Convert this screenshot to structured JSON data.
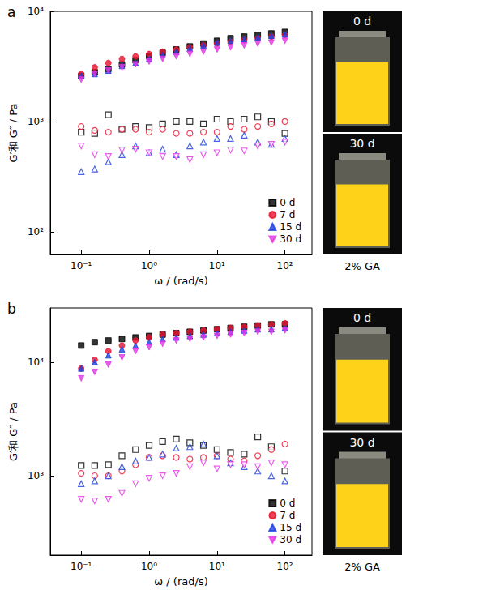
{
  "chart_data": [
    {
      "type": "scatter",
      "title": "a",
      "xlabel": "ω / (rad/s)",
      "ylabel": "G′和 G″ / Pa",
      "log": true,
      "grid": false,
      "legend": "lower right",
      "xlim": [
        0.035,
        250
      ],
      "xticks": [
        {
          "value": 0.1,
          "label": "10⁻¹"
        },
        {
          "value": 1,
          "label": "10⁰"
        },
        {
          "value": 10,
          "label": "10¹"
        },
        {
          "value": 100,
          "label": "10²"
        }
      ],
      "ylim": [
        62,
        10000
      ],
      "yticks": [
        {
          "value": 100,
          "label": "10²"
        },
        {
          "value": 1000,
          "label": "10³"
        },
        {
          "value": 10000,
          "label": "10⁴"
        }
      ],
      "annotations": [
        "0 d",
        "30 d",
        "2% GA"
      ],
      "x": [
        0.1,
        0.158,
        0.251,
        0.398,
        0.631,
        1,
        1.58,
        2.51,
        3.98,
        6.31,
        10,
        15.8,
        25.1,
        39.8,
        63.1,
        100
      ],
      "series": [
        {
          "name": "0 d",
          "color": "#000000",
          "marker": "square",
          "values": [
            2600,
            2800,
            3000,
            3300,
            3600,
            3900,
            4200,
            4500,
            4800,
            5100,
            5400,
            5700,
            5900,
            6100,
            6300,
            6500
          ]
        },
        {
          "name": "7 d",
          "color": "#e8112d",
          "marker": "circle",
          "values": [
            2700,
            3100,
            3400,
            3700,
            3900,
            4100,
            4300,
            4500,
            4700,
            4900,
            5100,
            5300,
            5500,
            5700,
            5900,
            6100
          ]
        },
        {
          "name": "15 d",
          "color": "#1c3fe0",
          "marker": "triangle",
          "values": [
            2600,
            2700,
            2900,
            3200,
            3400,
            3700,
            4000,
            4300,
            4600,
            4900,
            5200,
            5400,
            5600,
            5800,
            6000,
            6200
          ]
        },
        {
          "name": "30 d",
          "color": "#e535e5",
          "marker": "triangle-down",
          "values": [
            2400,
            2700,
            2900,
            3100,
            3300,
            3500,
            3700,
            3900,
            4100,
            4300,
            4500,
            4700,
            4900,
            5100,
            5200,
            5400
          ]
        },
        {
          "name": "0 d",
          "color": "#000000",
          "marker": "square-open",
          "values": [
            800,
            780,
            1150,
            850,
            900,
            880,
            950,
            1000,
            1000,
            950,
            1050,
            1000,
            1050,
            1100,
            1000,
            780
          ]
        },
        {
          "name": "7 d",
          "color": "#e8112d",
          "marker": "circle-open",
          "values": [
            900,
            830,
            800,
            850,
            850,
            800,
            850,
            780,
            780,
            800,
            800,
            900,
            850,
            900,
            950,
            1000
          ]
        },
        {
          "name": "15 d",
          "color": "#1c3fe0",
          "marker": "triangle-open",
          "values": [
            350,
            370,
            430,
            500,
            600,
            520,
            560,
            500,
            600,
            650,
            700,
            700,
            750,
            650,
            620,
            700
          ]
        },
        {
          "name": "30 d",
          "color": "#e535e5",
          "marker": "triangle-down-open",
          "values": [
            600,
            500,
            480,
            550,
            560,
            520,
            480,
            480,
            450,
            500,
            520,
            550,
            540,
            600,
            620,
            650
          ]
        }
      ]
    },
    {
      "type": "scatter",
      "title": "b",
      "xlabel": "ω / (rad/s)",
      "ylabel": "G′和 G″ / Pa",
      "log": true,
      "grid": false,
      "legend": "lower right",
      "xlim": [
        0.035,
        250
      ],
      "xticks": [
        {
          "value": 0.1,
          "label": "10⁻¹"
        },
        {
          "value": 1,
          "label": "10⁰"
        },
        {
          "value": 10,
          "label": "10¹"
        },
        {
          "value": 100,
          "label": "10²"
        }
      ],
      "ylim": [
        200,
        30000
      ],
      "yticks": [
        {
          "value": 1000,
          "label": "10³"
        },
        {
          "value": 10000,
          "label": "10⁴"
        }
      ],
      "annotations": [
        "0 d",
        "30 d",
        "2% GA"
      ],
      "x": [
        0.1,
        0.158,
        0.251,
        0.398,
        0.631,
        1,
        1.58,
        2.51,
        3.98,
        6.31,
        10,
        15.8,
        25.1,
        39.8,
        63.1,
        100
      ],
      "series": [
        {
          "name": "0 d",
          "color": "#000000",
          "marker": "square",
          "values": [
            14000,
            15000,
            15500,
            16000,
            16500,
            17000,
            17500,
            18000,
            18500,
            19000,
            19500,
            20000,
            20500,
            21000,
            21500,
            21500
          ]
        },
        {
          "name": "7 d",
          "color": "#e8112d",
          "marker": "circle",
          "values": [
            8800,
            10500,
            12500,
            14000,
            15500,
            16500,
            17500,
            18000,
            18500,
            19000,
            19500,
            20000,
            20500,
            21000,
            21500,
            22000
          ]
        },
        {
          "name": "15 d",
          "color": "#1c3fe0",
          "marker": "triangle",
          "values": [
            8800,
            10000,
            11500,
            13000,
            14000,
            15000,
            16000,
            16500,
            17000,
            17500,
            18000,
            18500,
            19000,
            19500,
            19500,
            20000
          ]
        },
        {
          "name": "30 d",
          "color": "#e535e5",
          "marker": "triangle-down",
          "values": [
            7200,
            8200,
            9500,
            11000,
            12500,
            13500,
            14500,
            15500,
            16000,
            16500,
            17000,
            17500,
            18000,
            18500,
            18500,
            19000
          ]
        },
        {
          "name": "0 d",
          "color": "#000000",
          "marker": "square-open",
          "values": [
            1230,
            1230,
            1250,
            1500,
            1700,
            1850,
            2000,
            2100,
            1950,
            1850,
            1700,
            1600,
            1550,
            2200,
            1800,
            1100
          ]
        },
        {
          "name": "7 d",
          "color": "#e8112d",
          "marker": "circle-open",
          "values": [
            1050,
            1000,
            1000,
            1100,
            1250,
            1450,
            1500,
            1450,
            1400,
            1450,
            1500,
            1400,
            1350,
            1500,
            1700,
            1900
          ]
        },
        {
          "name": "15 d",
          "color": "#1c3fe0",
          "marker": "triangle-open",
          "values": [
            850,
            900,
            1000,
            1200,
            1350,
            1450,
            1550,
            1750,
            1800,
            1900,
            1500,
            1300,
            1200,
            1100,
            1000,
            900
          ]
        },
        {
          "name": "30 d",
          "color": "#e535e5",
          "marker": "triangle-down-open",
          "values": [
            620,
            600,
            620,
            700,
            850,
            950,
            1000,
            1050,
            1200,
            1300,
            1150,
            1250,
            1250,
            1200,
            1300,
            1250
          ]
        }
      ]
    }
  ]
}
